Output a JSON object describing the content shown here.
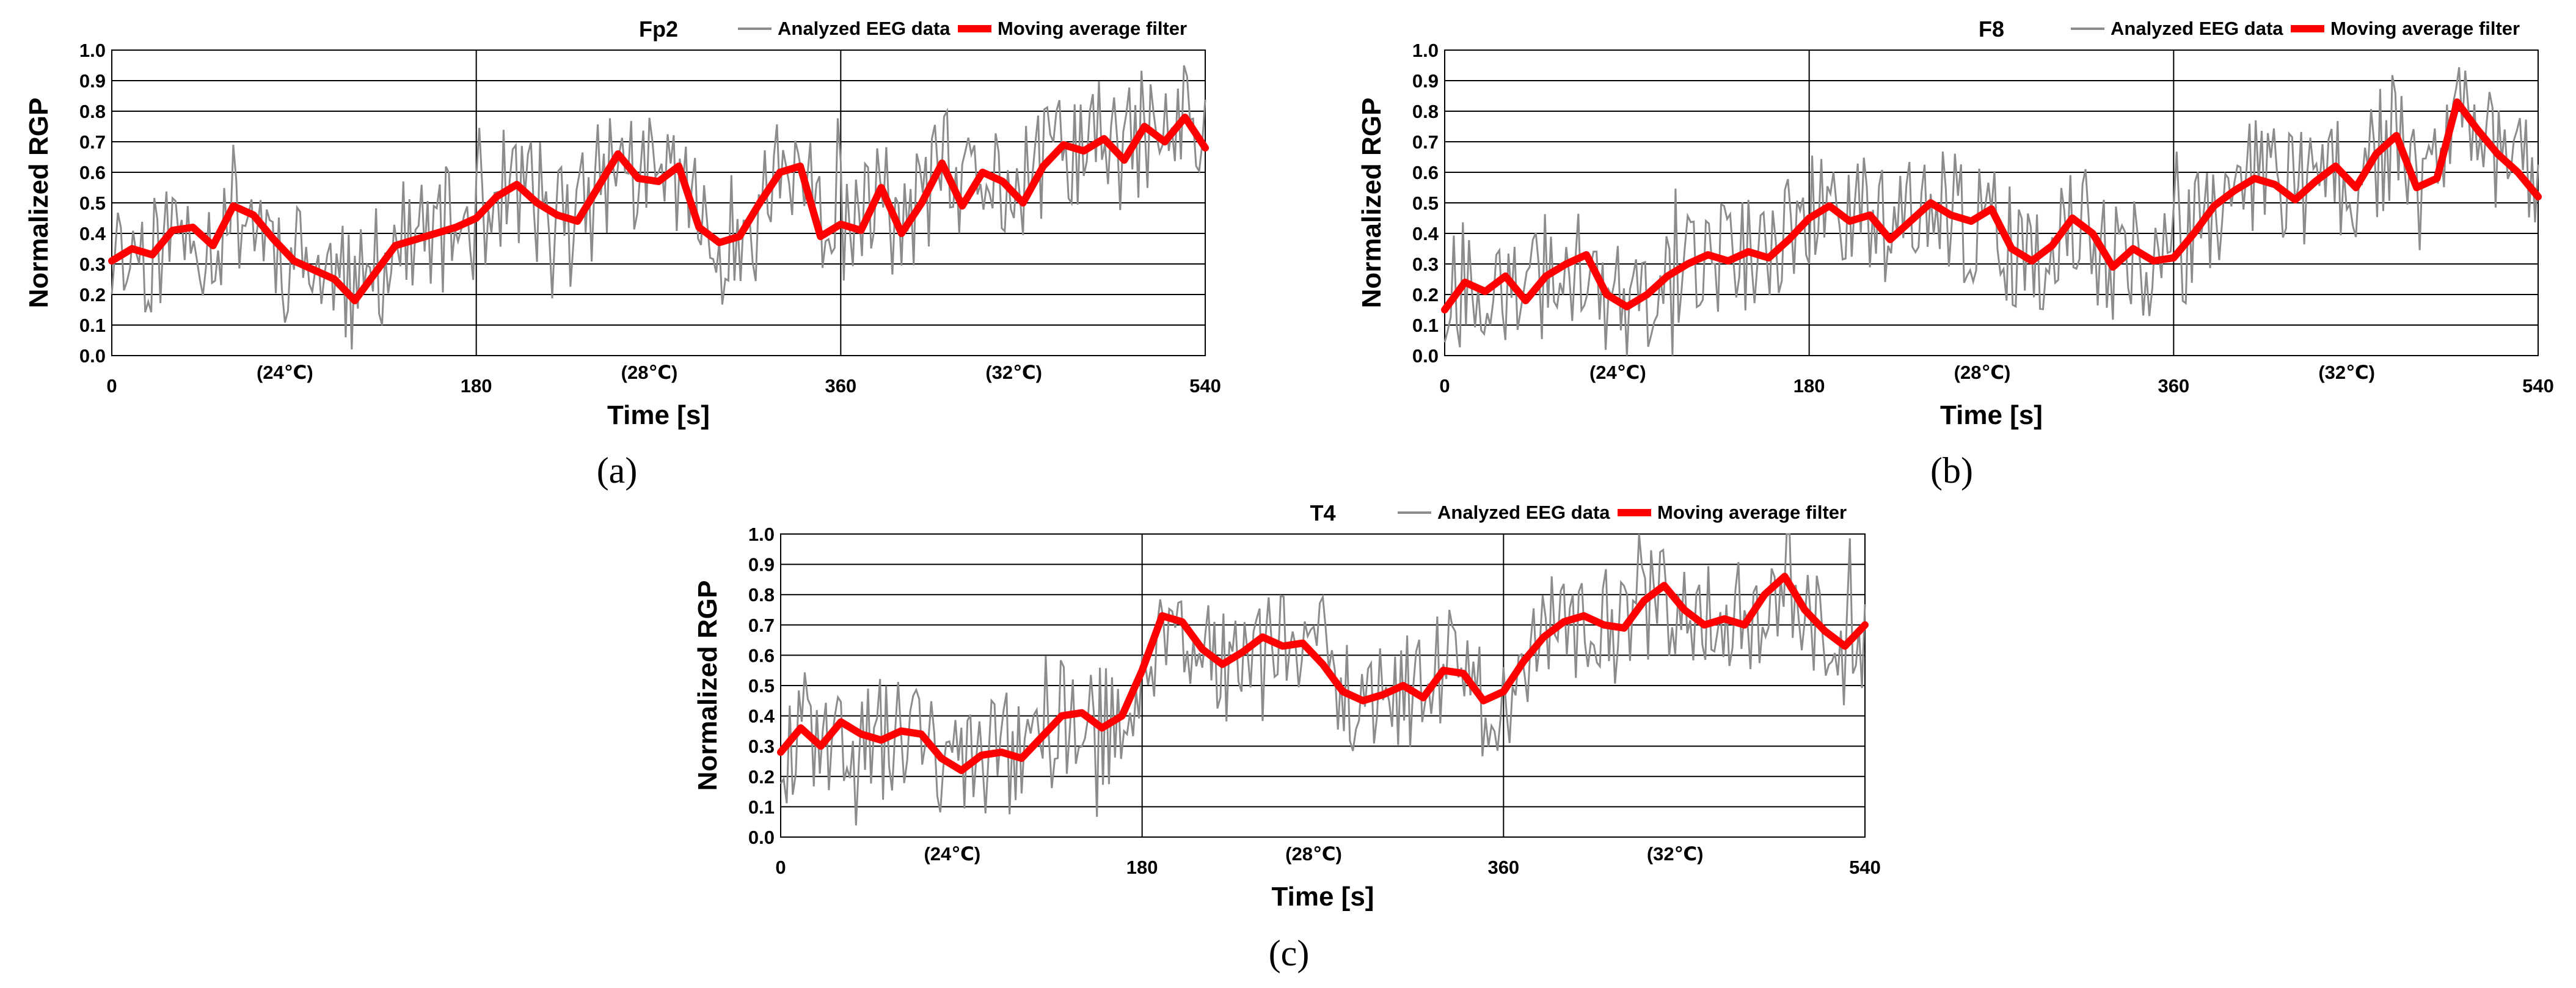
{
  "colors": {
    "raw": "#8c8c8c",
    "filtered": "#ff0000",
    "grid": "#000000",
    "text": "#000000"
  },
  "legend": {
    "raw_label": "Analyzed EEG data",
    "filter_label": "Moving average filter"
  },
  "chart_data": [
    {
      "id": "a",
      "type": "line",
      "title": "Fp2",
      "panel_label": "(a)",
      "xlabel": "Time [s]",
      "ylabel": "Normalized RGP",
      "xlim": [
        0,
        540
      ],
      "ylim": [
        0,
        1
      ],
      "x_ticks": [
        "0",
        "180",
        "360",
        "540"
      ],
      "y_ticks": [
        "0.0",
        "0.1",
        "0.2",
        "0.3",
        "0.4",
        "0.5",
        "0.6",
        "0.7",
        "0.8",
        "0.9",
        "1.0"
      ],
      "temperature_labels": [
        "(24℃)",
        "(28℃)",
        "(32℃)"
      ],
      "series": [
        {
          "name": "Moving average filter",
          "x": [
            0,
            10,
            20,
            30,
            40,
            50,
            60,
            70,
            80,
            90,
            100,
            110,
            120,
            130,
            140,
            150,
            160,
            170,
            180,
            190,
            200,
            210,
            220,
            230,
            240,
            250,
            260,
            270,
            280,
            290,
            300,
            310,
            320,
            330,
            340,
            350,
            360,
            370,
            380,
            390,
            400,
            410,
            420,
            430,
            440,
            450,
            460,
            470,
            480,
            490,
            500,
            510,
            520,
            530,
            540
          ],
          "values": [
            0.31,
            0.35,
            0.33,
            0.41,
            0.42,
            0.36,
            0.49,
            0.46,
            0.38,
            0.31,
            0.28,
            0.25,
            0.18,
            0.27,
            0.36,
            0.38,
            0.4,
            0.42,
            0.45,
            0.52,
            0.56,
            0.5,
            0.46,
            0.44,
            0.55,
            0.66,
            0.58,
            0.57,
            0.62,
            0.42,
            0.37,
            0.39,
            0.5,
            0.6,
            0.62,
            0.39,
            0.43,
            0.41,
            0.55,
            0.4,
            0.5,
            0.63,
            0.49,
            0.6,
            0.57,
            0.5,
            0.62,
            0.69,
            0.67,
            0.71,
            0.64,
            0.75,
            0.7,
            0.78,
            0.68
          ]
        }
      ]
    },
    {
      "id": "b",
      "type": "line",
      "title": "F8",
      "panel_label": "(b)",
      "xlabel": "Time [s]",
      "ylabel": "Normalized RGP",
      "xlim": [
        0,
        540
      ],
      "ylim": [
        0,
        1
      ],
      "x_ticks": [
        "0",
        "180",
        "360",
        "540"
      ],
      "y_ticks": [
        "0.0",
        "0.1",
        "0.2",
        "0.3",
        "0.4",
        "0.5",
        "0.6",
        "0.7",
        "0.8",
        "0.9",
        "1.0"
      ],
      "temperature_labels": [
        "(24℃)",
        "(28℃)",
        "(32℃)"
      ],
      "series": [
        {
          "name": "Moving average filter",
          "x": [
            0,
            10,
            20,
            30,
            40,
            50,
            60,
            70,
            80,
            90,
            100,
            110,
            120,
            130,
            140,
            150,
            160,
            170,
            180,
            190,
            200,
            210,
            220,
            230,
            240,
            250,
            260,
            270,
            280,
            290,
            300,
            310,
            320,
            330,
            340,
            350,
            360,
            370,
            380,
            390,
            400,
            410,
            420,
            430,
            440,
            450,
            460,
            470,
            480,
            490,
            500,
            510,
            520,
            530,
            540
          ],
          "values": [
            0.15,
            0.24,
            0.21,
            0.26,
            0.18,
            0.26,
            0.3,
            0.33,
            0.2,
            0.16,
            0.2,
            0.26,
            0.3,
            0.33,
            0.31,
            0.34,
            0.32,
            0.38,
            0.45,
            0.49,
            0.44,
            0.46,
            0.38,
            0.44,
            0.5,
            0.46,
            0.44,
            0.48,
            0.35,
            0.31,
            0.36,
            0.45,
            0.4,
            0.29,
            0.35,
            0.31,
            0.32,
            0.4,
            0.49,
            0.54,
            0.58,
            0.56,
            0.51,
            0.57,
            0.62,
            0.55,
            0.66,
            0.72,
            0.55,
            0.58,
            0.83,
            0.74,
            0.66,
            0.6,
            0.52
          ]
        }
      ]
    },
    {
      "id": "c",
      "type": "line",
      "title": "T4",
      "panel_label": "(c)",
      "xlabel": "Time [s]",
      "ylabel": "Normalized RGP",
      "xlim": [
        0,
        540
      ],
      "ylim": [
        0,
        1
      ],
      "x_ticks": [
        "0",
        "180",
        "360",
        "540"
      ],
      "y_ticks": [
        "0.0",
        "0.1",
        "0.2",
        "0.3",
        "0.4",
        "0.5",
        "0.6",
        "0.7",
        "0.8",
        "0.9",
        "1.0"
      ],
      "temperature_labels": [
        "(24℃)",
        "(28℃)",
        "(32℃)"
      ],
      "series": [
        {
          "name": "Moving average filter",
          "x": [
            0,
            10,
            20,
            30,
            40,
            50,
            60,
            70,
            80,
            90,
            100,
            110,
            120,
            130,
            140,
            150,
            160,
            170,
            180,
            190,
            200,
            210,
            220,
            230,
            240,
            250,
            260,
            270,
            280,
            290,
            300,
            310,
            320,
            330,
            340,
            350,
            360,
            370,
            380,
            390,
            400,
            410,
            420,
            430,
            440,
            450,
            460,
            470,
            480,
            490,
            500,
            510,
            520,
            530,
            540
          ],
          "values": [
            0.28,
            0.36,
            0.3,
            0.38,
            0.34,
            0.32,
            0.35,
            0.34,
            0.26,
            0.22,
            0.27,
            0.28,
            0.26,
            0.33,
            0.4,
            0.41,
            0.36,
            0.4,
            0.55,
            0.73,
            0.71,
            0.62,
            0.57,
            0.61,
            0.66,
            0.63,
            0.64,
            0.57,
            0.48,
            0.45,
            0.47,
            0.5,
            0.46,
            0.55,
            0.54,
            0.45,
            0.48,
            0.58,
            0.66,
            0.71,
            0.73,
            0.7,
            0.69,
            0.78,
            0.83,
            0.75,
            0.7,
            0.72,
            0.7,
            0.8,
            0.86,
            0.75,
            0.68,
            0.63,
            0.7
          ]
        }
      ]
    }
  ]
}
